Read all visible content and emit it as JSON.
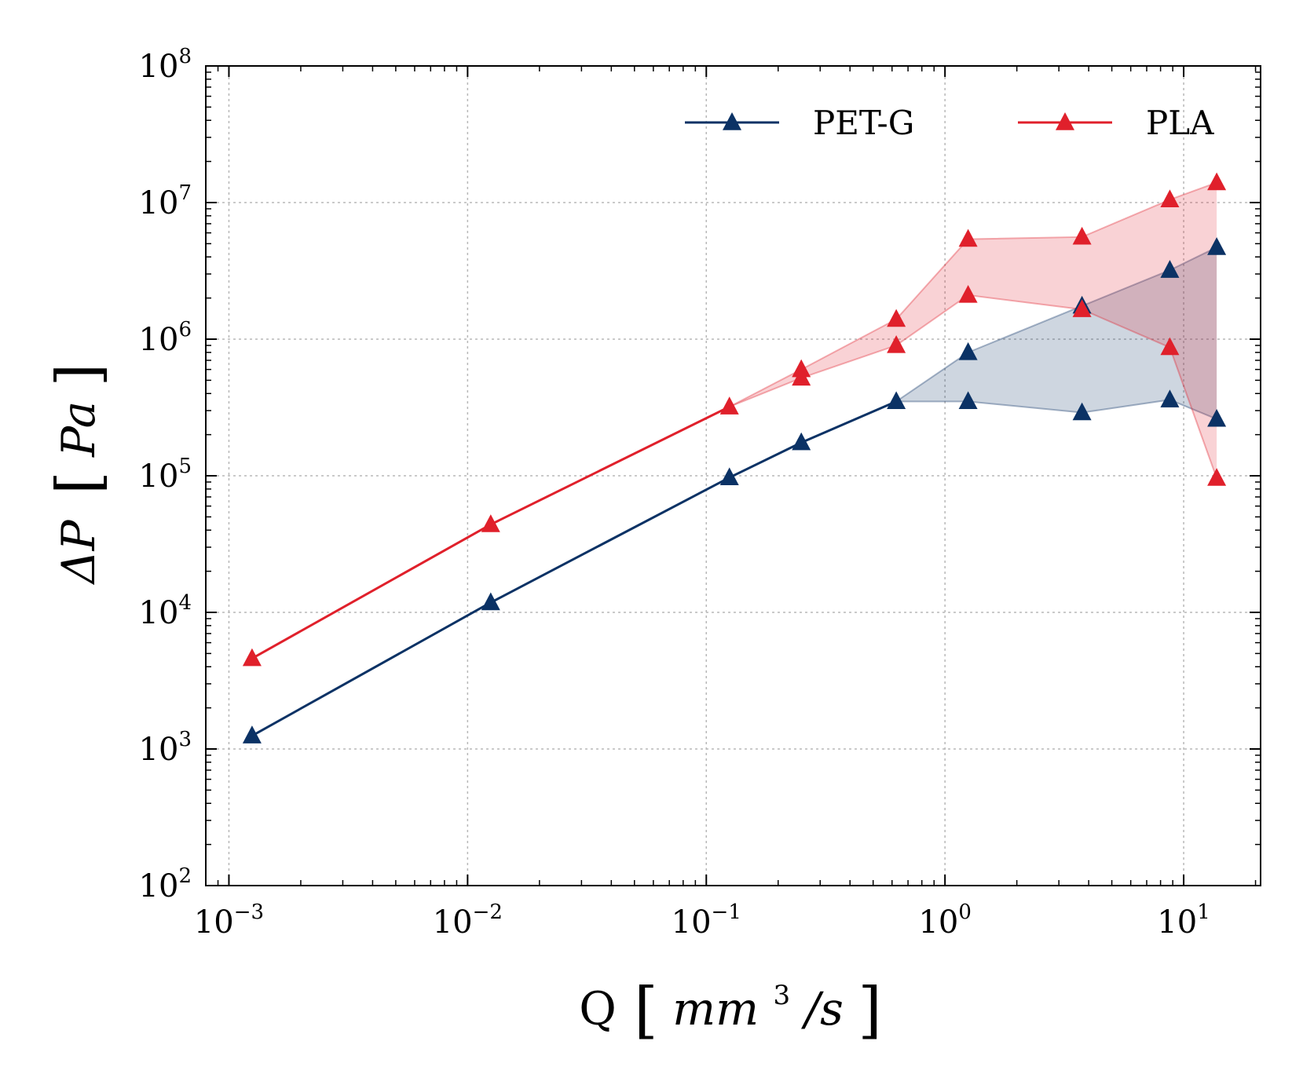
{
  "chart_data": {
    "type": "line",
    "xscale": "log",
    "yscale": "log",
    "xlim": [
      0.0008,
      21
    ],
    "ylim": [
      100,
      100000000
    ],
    "grid": true,
    "legend_position": "top-right",
    "xlabel": {
      "prefix": "Q",
      "var": "mm",
      "sup": "3",
      "suffix": "/s"
    },
    "ylabel": {
      "prefix": "ΔP",
      "unit": "Pa"
    },
    "x_ticks": [
      {
        "base": "10",
        "exp": "−3",
        "value": 0.001
      },
      {
        "base": "10",
        "exp": "−2",
        "value": 0.01
      },
      {
        "base": "10",
        "exp": "−1",
        "value": 0.1
      },
      {
        "base": "10",
        "exp": "0",
        "value": 1
      },
      {
        "base": "10",
        "exp": "1",
        "value": 10
      }
    ],
    "y_ticks": [
      {
        "base": "10",
        "exp": "2",
        "value": 100
      },
      {
        "base": "10",
        "exp": "3",
        "value": 1000
      },
      {
        "base": "10",
        "exp": "4",
        "value": 10000
      },
      {
        "base": "10",
        "exp": "5",
        "value": 100000
      },
      {
        "base": "10",
        "exp": "6",
        "value": 1000000
      },
      {
        "base": "10",
        "exp": "7",
        "value": 10000000
      },
      {
        "base": "10",
        "exp": "8",
        "value": 100000000
      }
    ],
    "series": [
      {
        "name": "PET-G",
        "color": "#0b3265",
        "fill_color": "#0b3265",
        "low": [
          [
            0.00125,
            1250
          ],
          [
            0.0125,
            11800
          ],
          [
            0.125,
            97000
          ],
          [
            0.25,
            175000
          ],
          [
            0.625,
            350000
          ],
          [
            1.25,
            350000
          ],
          [
            3.75,
            290000
          ],
          [
            8.75,
            360000
          ],
          [
            13.75,
            260000
          ]
        ],
        "high": [
          [
            0.00125,
            1250
          ],
          [
            0.0125,
            11800
          ],
          [
            0.125,
            97000
          ],
          [
            0.25,
            175000
          ],
          [
            0.625,
            350000
          ],
          [
            1.25,
            800000
          ],
          [
            3.75,
            1750000
          ],
          [
            8.75,
            3200000
          ],
          [
            13.75,
            4700000
          ]
        ]
      },
      {
        "name": "PLA",
        "color": "#e0202b",
        "fill_color": "#e0202b",
        "low": [
          [
            0.00125,
            4600
          ],
          [
            0.0125,
            44000
          ],
          [
            0.125,
            320000
          ],
          [
            0.25,
            520000
          ],
          [
            0.625,
            900000
          ],
          [
            1.25,
            2100000
          ],
          [
            3.75,
            1650000
          ],
          [
            8.75,
            870000
          ],
          [
            13.75,
            96000
          ]
        ],
        "high": [
          [
            0.00125,
            4600
          ],
          [
            0.0125,
            44000
          ],
          [
            0.125,
            320000
          ],
          [
            0.25,
            600000
          ],
          [
            0.625,
            1400000
          ],
          [
            1.25,
            5400000
          ],
          [
            3.75,
            5600000
          ],
          [
            8.75,
            10500000
          ],
          [
            13.75,
            14000000
          ]
        ]
      }
    ]
  }
}
